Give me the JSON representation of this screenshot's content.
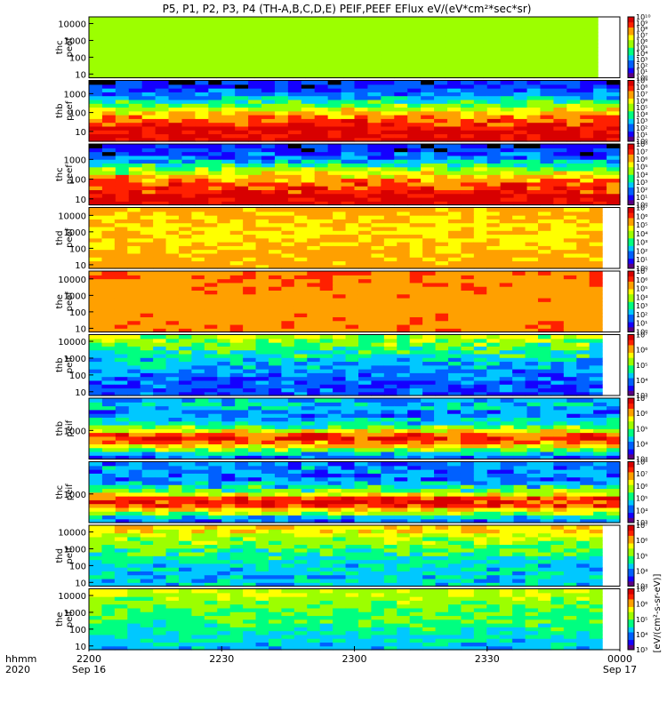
{
  "chart_data": {
    "type": "heatmap",
    "title": "P5, P1, P2, P3, P4 (TH-A,B,C,D,E) PEIF,PEEF EFlux eV/(eV*cm²*sec*sr)",
    "x_axis": {
      "row_label_1": "hhmm",
      "row_label_2": "2020",
      "ticks": [
        {
          "value": "2200",
          "date": "Sep 16"
        },
        {
          "value": "2230",
          "date": ""
        },
        {
          "value": "2300",
          "date": ""
        },
        {
          "value": "2330",
          "date": ""
        },
        {
          "value": "0000",
          "date": "Sep 17"
        }
      ],
      "range_minutes": [
        0,
        120
      ],
      "data_end_minutes": 116
    },
    "colorbar_label": "[eV/(cm²-s-sr-eV)]",
    "colormap": [
      "#5a0080",
      "#1400ff",
      "#0060ff",
      "#00c8ff",
      "#00ff80",
      "#9cff00",
      "#ffff00",
      "#ffa000",
      "#ff2000",
      "#d80000"
    ],
    "panels": [
      {
        "probe": "thc",
        "product": "peef",
        "y_ticks": [
          "10",
          "100",
          "1000",
          "10000"
        ],
        "energy_range_eV": [
          6,
          25000
        ],
        "profile": [
          5,
          5,
          5,
          5,
          5,
          5,
          5
        ],
        "noise": 0.15,
        "data_end_minutes": 115,
        "colorbar_ticks": [
          "10¹⁰",
          "10⁹",
          "10⁸",
          "10⁷",
          "10⁶",
          "10⁵",
          "10⁴",
          "10³",
          "10²",
          "10¹",
          "10⁰"
        ]
      },
      {
        "probe": "thb",
        "product": "peef",
        "y_ticks": [
          "10",
          "100",
          "1000"
        ],
        "energy_range_eV": [
          3,
          5000
        ],
        "profile": [
          9,
          9,
          8,
          7,
          5,
          3,
          1.5,
          1.2
        ],
        "noise": 0.5,
        "data_end_minutes": 120,
        "colorbar_ticks": [
          "10⁹",
          "10⁸",
          "10⁷",
          "10⁶",
          "10⁵",
          "10⁴",
          "10³",
          "10²",
          "10¹",
          "10⁰"
        ]
      },
      {
        "probe": "thc",
        "product": "peef",
        "y_ticks": [
          "10",
          "100",
          "1000"
        ],
        "energy_range_eV": [
          5,
          6000
        ],
        "profile": [
          9,
          9,
          8,
          7,
          5,
          3,
          1.5,
          1.2
        ],
        "noise": 0.55,
        "data_end_minutes": 120,
        "colorbar_ticks": [
          "10⁸",
          "10⁷",
          "10⁶",
          "10⁵",
          "10⁴",
          "10³",
          "10²",
          "10¹",
          "10⁰"
        ]
      },
      {
        "probe": "thd",
        "product": "peef",
        "y_ticks": [
          "10",
          "100",
          "1000",
          "10000"
        ],
        "energy_range_eV": [
          6,
          30000
        ],
        "profile": [
          7,
          6.8,
          6.5,
          6.4,
          6.4,
          6.6,
          6.8
        ],
        "noise": 0.25,
        "data_end_minutes": 116,
        "colorbar_ticks": [
          "10⁷",
          "10⁶",
          "10⁵",
          "10⁴",
          "10³",
          "10²",
          "10¹",
          "10⁰"
        ]
      },
      {
        "probe": "the",
        "product": "peef",
        "y_ticks": [
          "10",
          "100",
          "1000",
          "10000"
        ],
        "energy_range_eV": [
          6,
          30000
        ],
        "profile": [
          7.2,
          7.2,
          7.0,
          7.0,
          7.1,
          7.2,
          7.4
        ],
        "noise": 0.25,
        "data_end_minutes": 116,
        "colorbar_ticks": [
          "10⁷",
          "10⁶",
          "10⁵",
          "10⁴",
          "10³",
          "10²",
          "10¹",
          "10⁰"
        ]
      },
      {
        "probe": "thb",
        "product": "peif",
        "y_ticks": [
          "10",
          "100",
          "1000",
          "10000"
        ],
        "energy_range_eV": [
          6,
          25000
        ],
        "profile": [
          1.5,
          1.8,
          2.2,
          2.8,
          3.5,
          4.5,
          5.2
        ],
        "noise": 0.55,
        "data_end_minutes": 116,
        "colorbar_ticks": [
          "10⁷",
          "10⁶",
          "10⁵",
          "10⁴",
          "10³"
        ]
      },
      {
        "probe": "thb",
        "product": "peif",
        "y_ticks": [
          "1000"
        ],
        "energy_range_eV": [
          70,
          20000
        ],
        "profile": [
          1.5,
          4,
          7,
          8.5,
          5,
          3,
          2,
          3.5,
          2.5
        ],
        "noise": 0.55,
        "data_end_minutes": 120,
        "colorbar_ticks": [
          "10⁷",
          "10⁶",
          "10⁵",
          "10⁴",
          "10³"
        ]
      },
      {
        "probe": "thc",
        "product": "peif",
        "y_ticks": [
          "1000"
        ],
        "energy_range_eV": [
          70,
          20000
        ],
        "profile": [
          1.5,
          4,
          7.5,
          8.8,
          5,
          3,
          2,
          2.5,
          2
        ],
        "noise": 0.6,
        "data_end_minutes": 120,
        "colorbar_ticks": [
          "10⁸",
          "10⁷",
          "10⁶",
          "10⁵",
          "10⁴",
          "10³"
        ]
      },
      {
        "probe": "thd",
        "product": "peif",
        "y_ticks": [
          "10",
          "100",
          "1000",
          "10000"
        ],
        "energy_range_eV": [
          6,
          25000
        ],
        "profile": [
          3,
          3,
          3.2,
          3.8,
          4.5,
          5.5,
          6.5
        ],
        "noise": 0.45,
        "data_end_minutes": 116,
        "colorbar_ticks": [
          "10⁷",
          "10⁶",
          "10⁵",
          "10⁴",
          "10³"
        ]
      },
      {
        "probe": "the",
        "product": "peif",
        "y_ticks": [
          "10",
          "100",
          "1000",
          "10000"
        ],
        "energy_range_eV": [
          6,
          25000
        ],
        "profile": [
          2.8,
          3.2,
          3.8,
          4.2,
          4.5,
          5,
          5.5
        ],
        "noise": 0.35,
        "data_end_minutes": 116,
        "colorbar_ticks": [
          "10⁷",
          "10⁶",
          "10⁵",
          "10⁴",
          "10³"
        ]
      }
    ]
  }
}
